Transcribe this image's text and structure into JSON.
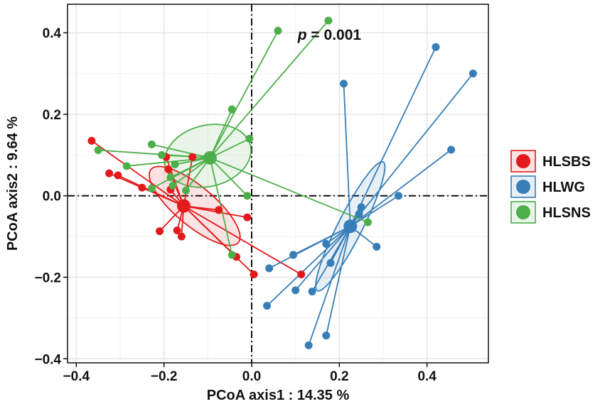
{
  "chart_data": {
    "type": "scatter",
    "xlabel": "PCoA axis1 : 14.35 %",
    "ylabel": "PCoA axis2 : 9.64 %",
    "xlim": [
      -0.42,
      0.54
    ],
    "ylim": [
      -0.41,
      0.47
    ],
    "xticks": [
      -0.4,
      -0.2,
      0.0,
      0.2,
      0.4
    ],
    "yticks": [
      -0.4,
      -0.2,
      0.0,
      0.2,
      0.4
    ],
    "xtick_labels": [
      "−0.4",
      "−0.2",
      "0.0",
      "0.2",
      "0.4"
    ],
    "ytick_labels": [
      "−0.4",
      "−0.2",
      "0.0",
      "0.2",
      "0.4"
    ],
    "grid": true,
    "reference_lines": {
      "x": 0,
      "y": 0,
      "style": "dash-dot"
    },
    "annotation": {
      "italic": "p",
      "text": " = 0.001",
      "x": 0.105,
      "y": 0.395
    },
    "legend_position": "right",
    "series": [
      {
        "name": "HLSBS",
        "color": "#E31A1C",
        "centroid": [
          -0.155,
          -0.025
        ],
        "ellipse": {
          "cx": -0.13,
          "cy": -0.025,
          "rx": 0.13,
          "ry": 0.048,
          "angle_deg": -40
        },
        "points": [
          [
            -0.365,
            0.135
          ],
          [
            -0.325,
            0.055
          ],
          [
            -0.305,
            0.05
          ],
          [
            -0.25,
            0.02
          ],
          [
            -0.195,
            0.095
          ],
          [
            -0.19,
            0.065
          ],
          [
            -0.185,
            0.015
          ],
          [
            -0.21,
            -0.087
          ],
          [
            -0.17,
            -0.085
          ],
          [
            -0.16,
            -0.1
          ],
          [
            -0.135,
            0.095
          ],
          [
            -0.075,
            -0.035
          ],
          [
            -0.035,
            -0.15
          ],
          [
            -0.01,
            -0.053
          ],
          [
            0.005,
            -0.193
          ],
          [
            0.113,
            -0.193
          ]
        ]
      },
      {
        "name": "HLWG",
        "color": "#377EB8",
        "centroid": [
          0.225,
          -0.075
        ],
        "ellipse": {
          "cx": 0.225,
          "cy": -0.075,
          "rx": 0.165,
          "ry": 0.03,
          "angle_deg": 63
        },
        "points": [
          [
            0.21,
            0.275
          ],
          [
            0.42,
            0.365
          ],
          [
            0.505,
            0.3
          ],
          [
            0.455,
            0.113
          ],
          [
            0.335,
            0.0
          ],
          [
            0.25,
            -0.028
          ],
          [
            0.245,
            -0.045
          ],
          [
            0.285,
            -0.125
          ],
          [
            0.04,
            -0.178
          ],
          [
            0.035,
            -0.27
          ],
          [
            0.1,
            -0.232
          ],
          [
            0.138,
            -0.235
          ],
          [
            0.17,
            -0.343
          ],
          [
            0.13,
            -0.367
          ],
          [
            0.095,
            -0.145
          ],
          [
            0.17,
            -0.118
          ],
          [
            0.18,
            -0.165
          ]
        ]
      },
      {
        "name": "HLSNS",
        "color": "#4DAF4A",
        "centroid": [
          -0.095,
          0.093
        ],
        "ellipse": {
          "cx": -0.1,
          "cy": 0.098,
          "rx": 0.1,
          "ry": 0.075,
          "angle_deg": 14
        },
        "points": [
          [
            0.175,
            0.43
          ],
          [
            0.06,
            0.405
          ],
          [
            -0.045,
            0.212
          ],
          [
            -0.005,
            0.14
          ],
          [
            -0.35,
            0.112
          ],
          [
            -0.285,
            0.073
          ],
          [
            -0.228,
            0.126
          ],
          [
            -0.205,
            0.1
          ],
          [
            -0.185,
            0.045
          ],
          [
            -0.175,
            0.077
          ],
          [
            -0.18,
            0.025
          ],
          [
            -0.228,
            0.018
          ],
          [
            -0.15,
            0.013
          ],
          [
            -0.01,
            0.0
          ],
          [
            -0.045,
            -0.145
          ],
          [
            0.265,
            -0.065
          ]
        ]
      }
    ]
  }
}
